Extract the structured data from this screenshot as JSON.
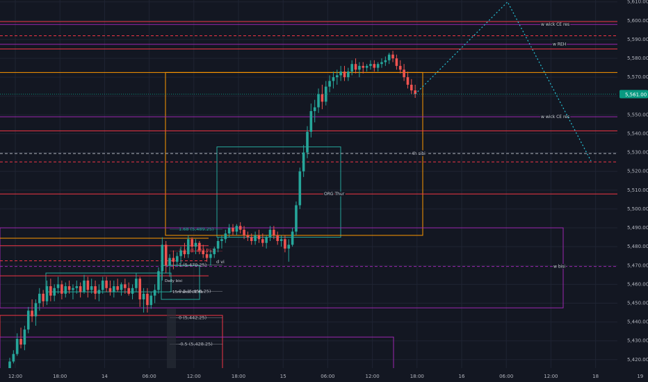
{
  "chart_data": {
    "type": "candlestick",
    "price_axis": {
      "ylim": [
        5415.5,
        5611
      ],
      "ticks": [
        5420,
        5430,
        5440,
        5450,
        5460,
        5470,
        5480,
        5490,
        5500,
        5510,
        5520,
        5530,
        5540,
        5550,
        5560,
        5570,
        5580,
        5590,
        5600,
        5610
      ],
      "tick_labels": [
        "5,420.00",
        "5,430.00",
        "5,440.00",
        "5,450.00",
        "5,460.00",
        "5,470.00",
        "5,480.00",
        "5,490.00",
        "5,500.00",
        "5,510.00",
        "5,520.00",
        "5,530.00",
        "5,540.00",
        "5,550.00",
        "5,560.00",
        "5,570.00",
        "5,580.00",
        "5,590.00",
        "5,600.00",
        "5,610.00"
      ],
      "current_price": 5561.0,
      "current_price_label": "5,561.00",
      "current_price_color": "#089981"
    },
    "time_axis": {
      "labels": [
        "12:00",
        "18:00",
        "14",
        "06:00",
        "12:00",
        "18:00",
        "15",
        "06:00",
        "12:00",
        "18:00",
        "16",
        "06:00",
        "12:00",
        "18",
        "19"
      ],
      "label_x_bars": [
        0,
        12,
        24,
        36,
        48,
        60,
        72,
        84,
        96,
        108,
        120,
        132,
        144,
        156,
        168
      ]
    },
    "candles_ohlc": [
      [
        5414.5,
        5421,
        5413.5,
        5419
      ],
      [
        5419,
        5425,
        5418,
        5423
      ],
      [
        5423,
        5434,
        5422,
        5431
      ],
      [
        5431,
        5437,
        5426,
        5428
      ],
      [
        5428,
        5438,
        5425,
        5436
      ],
      [
        5436,
        5448,
        5434,
        5446
      ],
      [
        5446,
        5452,
        5440,
        5443
      ],
      [
        5443,
        5452,
        5438,
        5450
      ],
      [
        5450,
        5458,
        5446,
        5455
      ],
      [
        5455,
        5457,
        5448,
        5451
      ],
      [
        5451,
        5462,
        5449,
        5459
      ],
      [
        5459,
        5463,
        5451,
        5454
      ],
      [
        5454,
        5460,
        5451,
        5458
      ],
      [
        5458,
        5464,
        5455,
        5460
      ],
      [
        5460,
        5462,
        5452,
        5455
      ],
      [
        5455,
        5461,
        5453,
        5459
      ],
      [
        5459,
        5462,
        5455,
        5457
      ],
      [
        5457,
        5460,
        5452,
        5458
      ],
      [
        5458,
        5462,
        5455,
        5459
      ],
      [
        5459,
        5461,
        5453,
        5456
      ],
      [
        5456,
        5465,
        5455,
        5462
      ],
      [
        5462,
        5464,
        5453,
        5457
      ],
      [
        5457,
        5463,
        5455,
        5459
      ],
      [
        5459,
        5462,
        5452,
        5455
      ],
      [
        5455,
        5460,
        5451,
        5457
      ],
      [
        5457,
        5464,
        5455,
        5462
      ],
      [
        5462,
        5464,
        5456,
        5458
      ],
      [
        5458,
        5462,
        5454,
        5456
      ],
      [
        5456,
        5462,
        5453,
        5459
      ],
      [
        5459,
        5463,
        5456,
        5457
      ],
      [
        5457,
        5461,
        5454,
        5460
      ],
      [
        5460,
        5463,
        5455,
        5458
      ],
      [
        5458,
        5461,
        5454,
        5455
      ],
      [
        5455,
        5460,
        5452,
        5458
      ],
      [
        5458,
        5466,
        5456,
        5463
      ],
      [
        5463,
        5464,
        5448,
        5452
      ],
      [
        5452,
        5458,
        5445,
        5455
      ],
      [
        5455,
        5458,
        5445,
        5449
      ],
      [
        5449,
        5456,
        5447,
        5454
      ],
      [
        5454,
        5460,
        5450,
        5457
      ],
      [
        5457,
        5469,
        5455,
        5467
      ],
      [
        5467,
        5485,
        5462,
        5481
      ],
      [
        5481,
        5483,
        5466,
        5470
      ],
      [
        5470,
        5476,
        5464,
        5474
      ],
      [
        5474,
        5478,
        5468,
        5472
      ],
      [
        5472,
        5477,
        5470,
        5475
      ],
      [
        5475,
        5480,
        5471,
        5478
      ],
      [
        5478,
        5482,
        5474,
        5476
      ],
      [
        5476,
        5486,
        5474,
        5484
      ],
      [
        5484,
        5485,
        5477,
        5480
      ],
      [
        5480,
        5484,
        5476,
        5482
      ],
      [
        5482,
        5483,
        5476,
        5478
      ],
      [
        5478,
        5481,
        5474,
        5476
      ],
      [
        5476,
        5479,
        5472,
        5474
      ],
      [
        5474,
        5478,
        5470,
        5476
      ],
      [
        5476,
        5480,
        5474,
        5479
      ],
      [
        5479,
        5485,
        5477,
        5483
      ],
      [
        5483,
        5486,
        5479,
        5484
      ],
      [
        5484,
        5489,
        5482,
        5487
      ],
      [
        5487,
        5492,
        5485,
        5490
      ],
      [
        5490,
        5492,
        5486,
        5488
      ],
      [
        5488,
        5492,
        5486,
        5491
      ],
      [
        5491,
        5493,
        5487,
        5489
      ],
      [
        5489,
        5491,
        5484,
        5486
      ],
      [
        5486,
        5488,
        5483,
        5485
      ],
      [
        5485,
        5487,
        5481,
        5483
      ],
      [
        5483,
        5488,
        5481,
        5486
      ],
      [
        5486,
        5489,
        5482,
        5484
      ],
      [
        5484,
        5487,
        5480,
        5482
      ],
      [
        5482,
        5486,
        5479,
        5485
      ],
      [
        5485,
        5491,
        5483,
        5489
      ],
      [
        5489,
        5491,
        5484,
        5486
      ],
      [
        5486,
        5488,
        5481,
        5483
      ],
      [
        5483,
        5486,
        5480,
        5484
      ],
      [
        5484,
        5486,
        5477,
        5479
      ],
      [
        5479,
        5484,
        5472,
        5481
      ],
      [
        5481,
        5490,
        5480,
        5488
      ],
      [
        5488,
        5504,
        5486,
        5502
      ],
      [
        5502,
        5522,
        5500,
        5520
      ],
      [
        5520,
        5534,
        5517,
        5530
      ],
      [
        5530,
        5544,
        5527,
        5541
      ],
      [
        5541,
        5556,
        5538,
        5552
      ],
      [
        5552,
        5558,
        5546,
        5554
      ],
      [
        5554,
        5564,
        5551,
        5561
      ],
      [
        5561,
        5566,
        5553,
        5557
      ],
      [
        5557,
        5568,
        5555,
        5565
      ],
      [
        5565,
        5571,
        5562,
        5568
      ],
      [
        5568,
        5573,
        5564,
        5570
      ],
      [
        5570,
        5574,
        5566,
        5571
      ],
      [
        5571,
        5576,
        5568,
        5573
      ],
      [
        5573,
        5576,
        5568,
        5570
      ],
      [
        5570,
        5575,
        5568,
        5573
      ],
      [
        5573,
        5579,
        5571,
        5577
      ],
      [
        5577,
        5580,
        5572,
        5574
      ],
      [
        5574,
        5578,
        5570,
        5576
      ],
      [
        5576,
        5578,
        5572,
        5575
      ],
      [
        5575,
        5577,
        5573,
        5576
      ],
      [
        5576,
        5579,
        5574,
        5577
      ],
      [
        5577,
        5579,
        5573,
        5575
      ],
      [
        5575,
        5578,
        5573,
        5577
      ],
      [
        5577,
        5580,
        5575,
        5578
      ],
      [
        5578,
        5581,
        5576,
        5579
      ],
      [
        5579,
        5583,
        5577,
        5582
      ],
      [
        5582,
        5584,
        5578,
        5580
      ],
      [
        5580,
        5582,
        5574,
        5576
      ],
      [
        5576,
        5579,
        5572,
        5574
      ],
      [
        5574,
        5577,
        5568,
        5570
      ],
      [
        5570,
        5573,
        5564,
        5566
      ],
      [
        5566,
        5569,
        5561,
        5563
      ],
      [
        5563,
        5566,
        5559,
        5561
      ]
    ],
    "levels": [
      {
        "label": "w wick CE res",
        "price": 5598.0,
        "color": "#9c27b0"
      },
      {
        "label": "",
        "price": 5599.5,
        "color": "#f23645"
      },
      {
        "label": "",
        "price": 5592.0,
        "color": "#f23645",
        "dashed": true
      },
      {
        "label": "w REH",
        "price": 5587.5,
        "color": "#9c27b0"
      },
      {
        "label": "",
        "price": 5585.0,
        "color": "#f23645"
      },
      {
        "label": "",
        "price": 5572.5,
        "color": "#ff9800"
      },
      {
        "label": "w wick CE res",
        "price": 5549.0,
        "color": "#9c27b0"
      },
      {
        "label": "",
        "price": 5541.5,
        "color": "#f23645"
      },
      {
        "label": "4h sibi",
        "price": 5529.5,
        "color": "#b2b5be",
        "dashed": true
      },
      {
        "label": "",
        "price": 5525.0,
        "color": "#f23645",
        "dashed": true
      },
      {
        "label": "ORG Thur",
        "price": 5508.0,
        "color": "#f23645"
      },
      {
        "label": "w bisi",
        "price": 5469.5,
        "color": "#9c27b0",
        "dashed": true
      }
    ],
    "fib_labels": [
      {
        "text": "1.68 (5,489.25)",
        "price": 5489.25,
        "color": "#26a69a"
      },
      {
        "text": "1.27 (5,477.75)",
        "price": 5477.75,
        "color": "#f23645"
      },
      {
        "text": "1 (5,470.25)",
        "price": 5470.25,
        "color": "#b2b5be"
      },
      {
        "text": "0.5 (5,456.25)",
        "price": 5456.25,
        "color": "#b2b5be"
      },
      {
        "text": "0 (5,442.25)",
        "price": 5442.25,
        "color": "#b2b5be"
      },
      {
        "text": "-0.5 (5,428.25)",
        "price": 5428.25,
        "color": "#b2b5be"
      },
      {
        "text": "-1 (5,414.25)",
        "price": 5414.25,
        "color": "#f23645"
      }
    ],
    "annotations": [
      "d vi",
      "15m wick CE fib",
      "Daily bisi"
    ]
  }
}
